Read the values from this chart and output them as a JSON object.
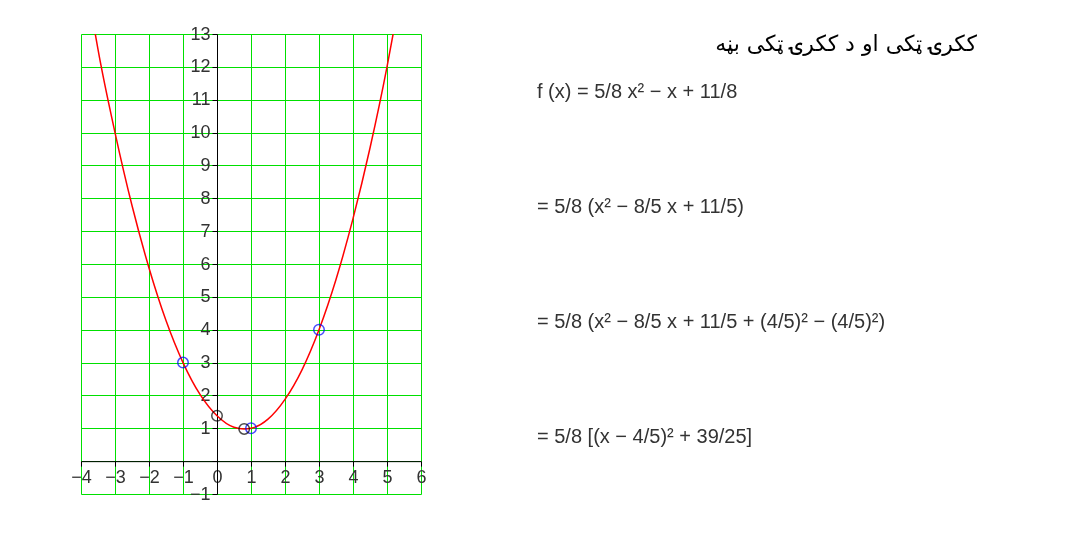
{
  "chart_data": {
    "type": "line",
    "title": "ککرۍ ټکی او د ککرۍ ټکی بڼه",
    "annotations": [
      "f (x) = 5/8 x² − x + 11/8",
      "= 5/8 (x² − 8/5 x + 11/5)",
      "= 5/8 (x² − 8/5 x + 11/5 + (4/5)² − (4/5)²)",
      "= 5/8 [(x − 4/5)² + 39/25]"
    ],
    "series": [
      {
        "color": "#ff0000",
        "x": [
          -3.58,
          -3.5,
          -3,
          -2.5,
          -2,
          -1.5,
          -1,
          -0.5,
          0,
          0.5,
          0.8,
          1,
          1.5,
          2,
          2.5,
          3,
          3.5,
          4,
          4.5,
          5,
          5.18
        ],
        "values": [
          13,
          12.53,
          10,
          7.78,
          5.88,
          4.28,
          3,
          2.03,
          1.38,
          1.03,
          0.98,
          1,
          1.28,
          1.88,
          2.78,
          4,
          5.53,
          7.38,
          9.53,
          12,
          13
        ]
      },
      {
        "type": "scatter",
        "marker": "circle",
        "color": "#0000ff",
        "x": [
          -1,
          1,
          3
        ],
        "values": [
          3,
          1,
          4
        ]
      },
      {
        "type": "scatter",
        "marker": "circle",
        "color": "#000000",
        "x": [
          0,
          0.8
        ],
        "values": [
          1.38,
          0.98
        ]
      }
    ],
    "xlim": [
      -4,
      6
    ],
    "ylim": [
      -1,
      13
    ],
    "xticks": [
      -4,
      -3,
      -2,
      -1,
      0,
      1,
      2,
      3,
      4,
      5,
      6
    ],
    "yticks": [
      -1,
      {
        "value": 0,
        "label": null
      },
      1,
      2,
      3,
      4,
      5,
      6,
      7,
      8,
      9,
      10,
      11,
      12,
      13
    ],
    "grid": true,
    "line_style": "solid"
  }
}
